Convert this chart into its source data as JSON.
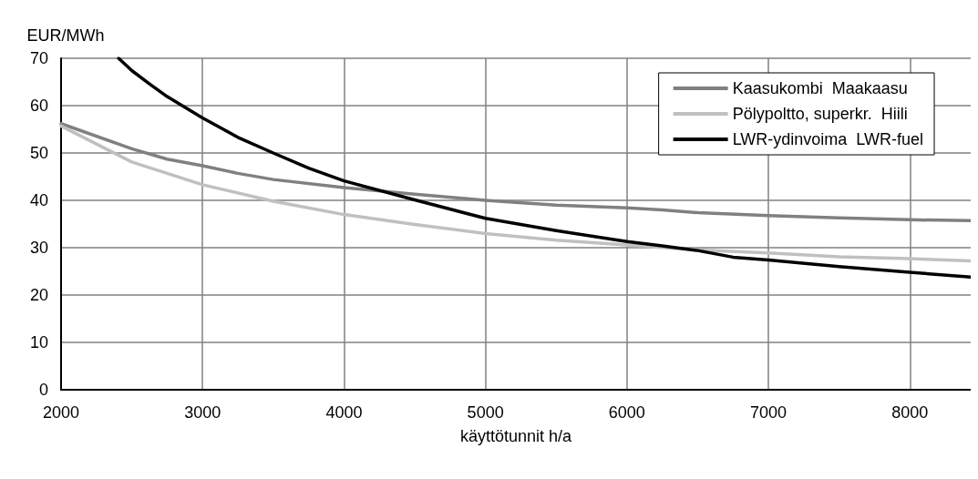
{
  "chart_data": {
    "type": "line",
    "ylabel": "EUR/MWh",
    "xlabel": "käyttötunnit h/a",
    "xlim": [
      2000,
      8430
    ],
    "xticks": [
      2000,
      3000,
      4000,
      5000,
      6000,
      7000,
      8000
    ],
    "ylim": [
      0,
      70
    ],
    "yticks": [
      0,
      10,
      20,
      30,
      40,
      50,
      60,
      70
    ],
    "grid": true,
    "legend": "top right",
    "marker": "none",
    "line_style": "solid",
    "series": [
      {
        "name": "Kaasukombi  Maakaasu",
        "color": "#808080",
        "x": [
          2000,
          2500,
          2750,
          3000,
          3250,
          3500,
          4000,
          4500,
          5000,
          5500,
          6000,
          6250,
          6500,
          7000,
          7500,
          8000,
          8430
        ],
        "values": [
          56.2,
          50.9,
          48.7,
          47.3,
          45.7,
          44.4,
          42.7,
          41.3,
          40.0,
          39.0,
          38.4,
          38.0,
          37.4,
          36.8,
          36.3,
          35.9,
          35.7
        ]
      },
      {
        "name": "Pölypoltto, superkr.  Hiili",
        "color": "#c0c0c0",
        "x": [
          2000,
          2500,
          3000,
          3500,
          4000,
          4500,
          5000,
          5500,
          6000,
          6500,
          7000,
          7500,
          8000,
          8430
        ],
        "values": [
          55.7,
          48.1,
          43.3,
          39.8,
          37.0,
          34.9,
          33.0,
          31.6,
          30.6,
          29.5,
          28.9,
          28.1,
          27.7,
          27.2
        ]
      },
      {
        "name": "LWR-ydinvoima  LWR-fuel",
        "color": "#000000",
        "x": [
          2407,
          2500,
          2625,
          2750,
          3000,
          3250,
          3500,
          3750,
          4000,
          4500,
          5000,
          5500,
          6000,
          6250,
          6500,
          6750,
          7000,
          7500,
          8000,
          8430
        ],
        "values": [
          70,
          67.4,
          64.6,
          61.9,
          57.4,
          53.3,
          50.0,
          46.8,
          44.1,
          40.1,
          36.2,
          33.6,
          31.3,
          30.4,
          29.4,
          28.0,
          27.4,
          26.0,
          24.8,
          23.8
        ]
      }
    ]
  }
}
